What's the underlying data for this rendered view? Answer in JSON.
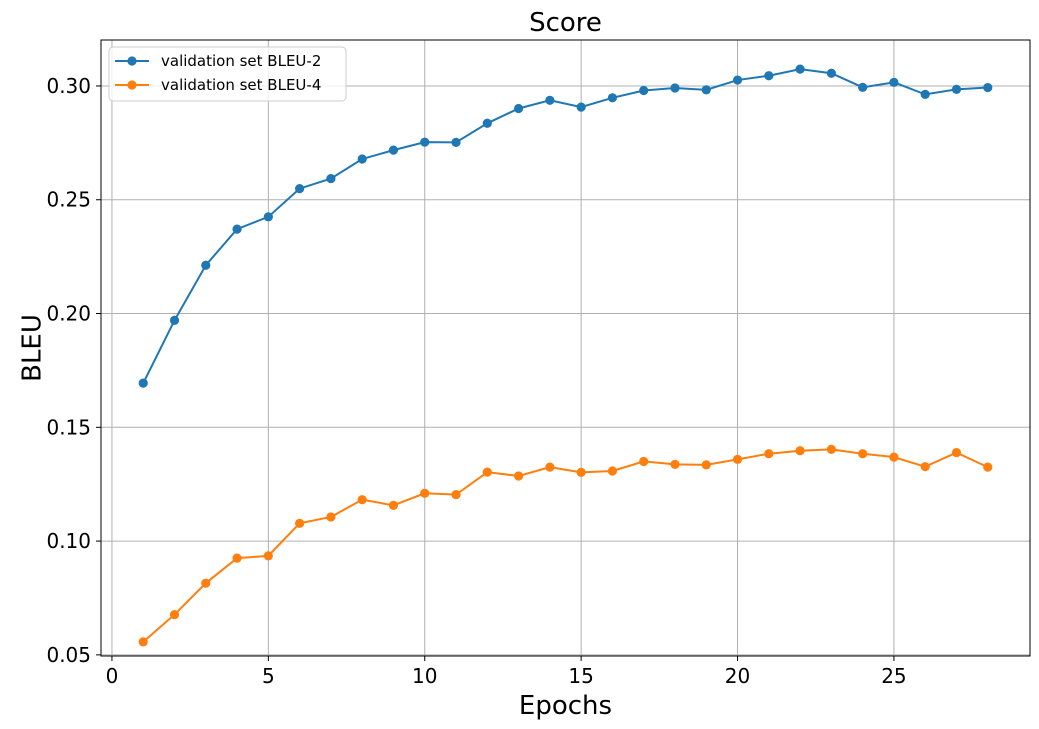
{
  "chart_data": {
    "type": "line",
    "title": "Score",
    "xlabel": "Epochs",
    "ylabel": "BLEU",
    "xlim": [
      -0.35,
      29.35
    ],
    "ylim": [
      0.0495,
      0.3202
    ],
    "xticks": [
      0,
      5,
      10,
      15,
      20,
      25
    ],
    "yticks": [
      0.05,
      0.1,
      0.15,
      0.2,
      0.25,
      0.3
    ],
    "xtick_labels": [
      "0",
      "5",
      "10",
      "15",
      "20",
      "25"
    ],
    "ytick_labels": [
      "0.05",
      "0.10",
      "0.15",
      "0.20",
      "0.25",
      "0.30"
    ],
    "grid": true,
    "legend_position": "top-left",
    "x": [
      1,
      2,
      3,
      4,
      5,
      6,
      7,
      8,
      9,
      10,
      11,
      12,
      13,
      14,
      15,
      16,
      17,
      18,
      19,
      20,
      21,
      22,
      23,
      24,
      25,
      26,
      27,
      28
    ],
    "series": [
      {
        "name": "validation set BLEU-2",
        "color": "#1f77b4",
        "values": [
          0.1694,
          0.197,
          0.2212,
          0.2371,
          0.2425,
          0.2549,
          0.2593,
          0.2679,
          0.2718,
          0.2753,
          0.2752,
          0.2836,
          0.2901,
          0.2937,
          0.2907,
          0.2948,
          0.298,
          0.2991,
          0.2983,
          0.3026,
          0.3045,
          0.3074,
          0.3056,
          0.2994,
          0.3016,
          0.2963,
          0.2985,
          0.2993
        ]
      },
      {
        "name": "validation set BLEU-4",
        "color": "#ff7f0e",
        "values": [
          0.0557,
          0.0677,
          0.0815,
          0.0925,
          0.0935,
          0.1078,
          0.1106,
          0.1182,
          0.1157,
          0.121,
          0.1204,
          0.1303,
          0.1286,
          0.1325,
          0.1302,
          0.1308,
          0.135,
          0.1337,
          0.1335,
          0.1359,
          0.1384,
          0.1397,
          0.1403,
          0.1384,
          0.1369,
          0.1327,
          0.1389,
          0.1325
        ]
      }
    ]
  }
}
